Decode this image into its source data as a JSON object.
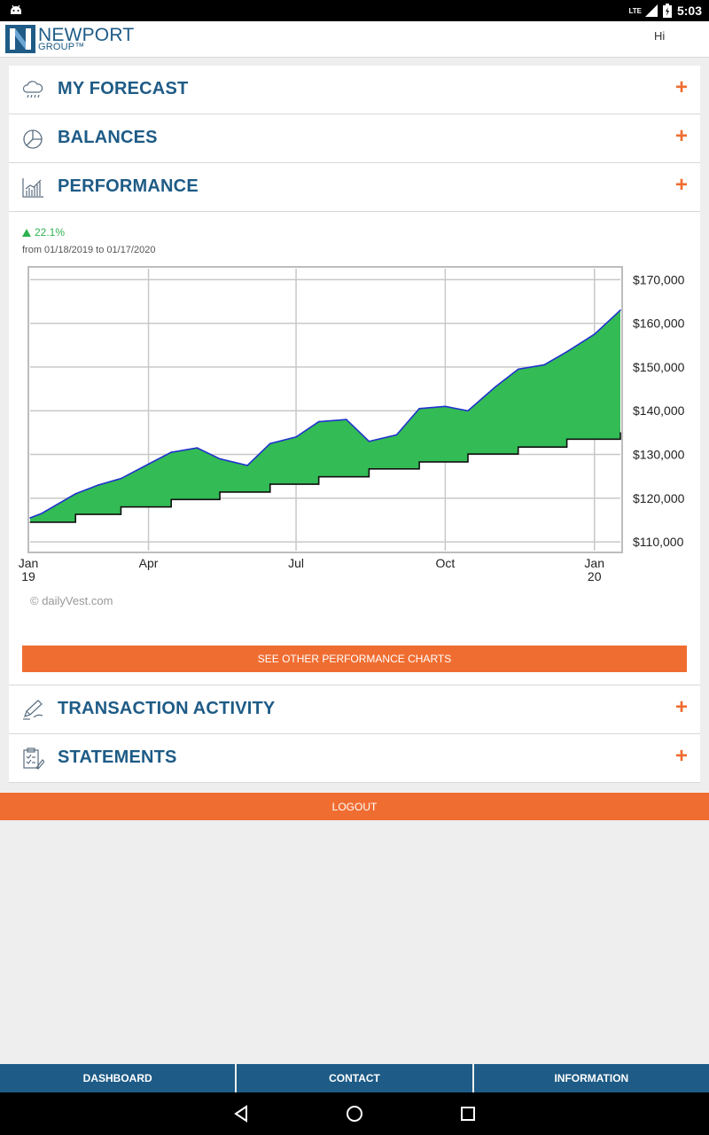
{
  "status_bar": {
    "network": "LTE",
    "time": "5:03"
  },
  "header": {
    "logo_line1": "NEWPORT",
    "logo_line2": "GROUP™",
    "greeting": "Hi"
  },
  "sections": {
    "forecast": {
      "label": "MY FORECAST",
      "icon": "cloud-rain-icon"
    },
    "balances": {
      "label": "BALANCES",
      "icon": "pie-chart-icon"
    },
    "performance": {
      "label": "PERFORMANCE",
      "icon": "bar-chart-icon"
    },
    "transactions": {
      "label": "TRANSACTION ACTIVITY",
      "icon": "pen-icon"
    },
    "statements": {
      "label": "STATEMENTS",
      "icon": "clipboard-icon"
    },
    "expand_symbol": "+"
  },
  "performance": {
    "change": "22.1%",
    "period": "from 01/18/2019 to 01/17/2020",
    "watermark": "© dailyVest.com",
    "button_label": "SEE OTHER PERFORMANCE CHARTS"
  },
  "chart_data": {
    "type": "area",
    "title": "",
    "xlabel": "",
    "ylabel": "",
    "x_ticks": [
      "Jan 19",
      "Apr",
      "Jul",
      "Oct",
      "Jan 20"
    ],
    "y_ticks": [
      "$110,000",
      "$120,000",
      "$130,000",
      "$140,000",
      "$150,000",
      "$160,000",
      "$170,000"
    ],
    "ylim": [
      108000,
      172500
    ],
    "xlim": [
      "2019-01-18",
      "2020-01-17"
    ],
    "grid": true,
    "fill_color": "#33bb55",
    "series": [
      {
        "line_color": "#2233cc",
        "x": [
          "2019-01-18",
          "2019-01-25",
          "2019-02-01",
          "2019-02-15",
          "2019-03-01",
          "2019-03-15",
          "2019-04-01",
          "2019-04-15",
          "2019-05-01",
          "2019-05-15",
          "2019-06-01",
          "2019-06-15",
          "2019-07-01",
          "2019-07-15",
          "2019-08-01",
          "2019-08-15",
          "2019-09-01",
          "2019-09-15",
          "2019-10-01",
          "2019-10-15",
          "2019-11-01",
          "2019-11-15",
          "2019-12-01",
          "2019-12-15",
          "2020-01-01",
          "2020-01-17"
        ],
        "values": [
          115500,
          116500,
          118000,
          121000,
          123000,
          124500,
          127800,
          130500,
          131500,
          129000,
          127500,
          132500,
          134000,
          137500,
          138000,
          133000,
          134500,
          140500,
          141000,
          140000,
          145500,
          149500,
          150500,
          153500,
          157500,
          163000
        ]
      },
      {
        "line_color": "#111111",
        "x": [
          "2019-01-18",
          "2019-02-15",
          "2019-03-15",
          "2019-04-15",
          "2019-05-15",
          "2019-06-15",
          "2019-07-15",
          "2019-08-15",
          "2019-09-15",
          "2019-10-15",
          "2019-11-15",
          "2019-12-15",
          "2020-01-17"
        ],
        "values": [
          114500,
          116300,
          118000,
          119700,
          121400,
          123200,
          124900,
          126700,
          128300,
          130100,
          131700,
          133500,
          135000
        ]
      }
    ]
  },
  "footer": {
    "logout_label": "LOGOUT",
    "tabs": [
      "DASHBOARD",
      "CONTACT",
      "INFORMATION"
    ]
  }
}
